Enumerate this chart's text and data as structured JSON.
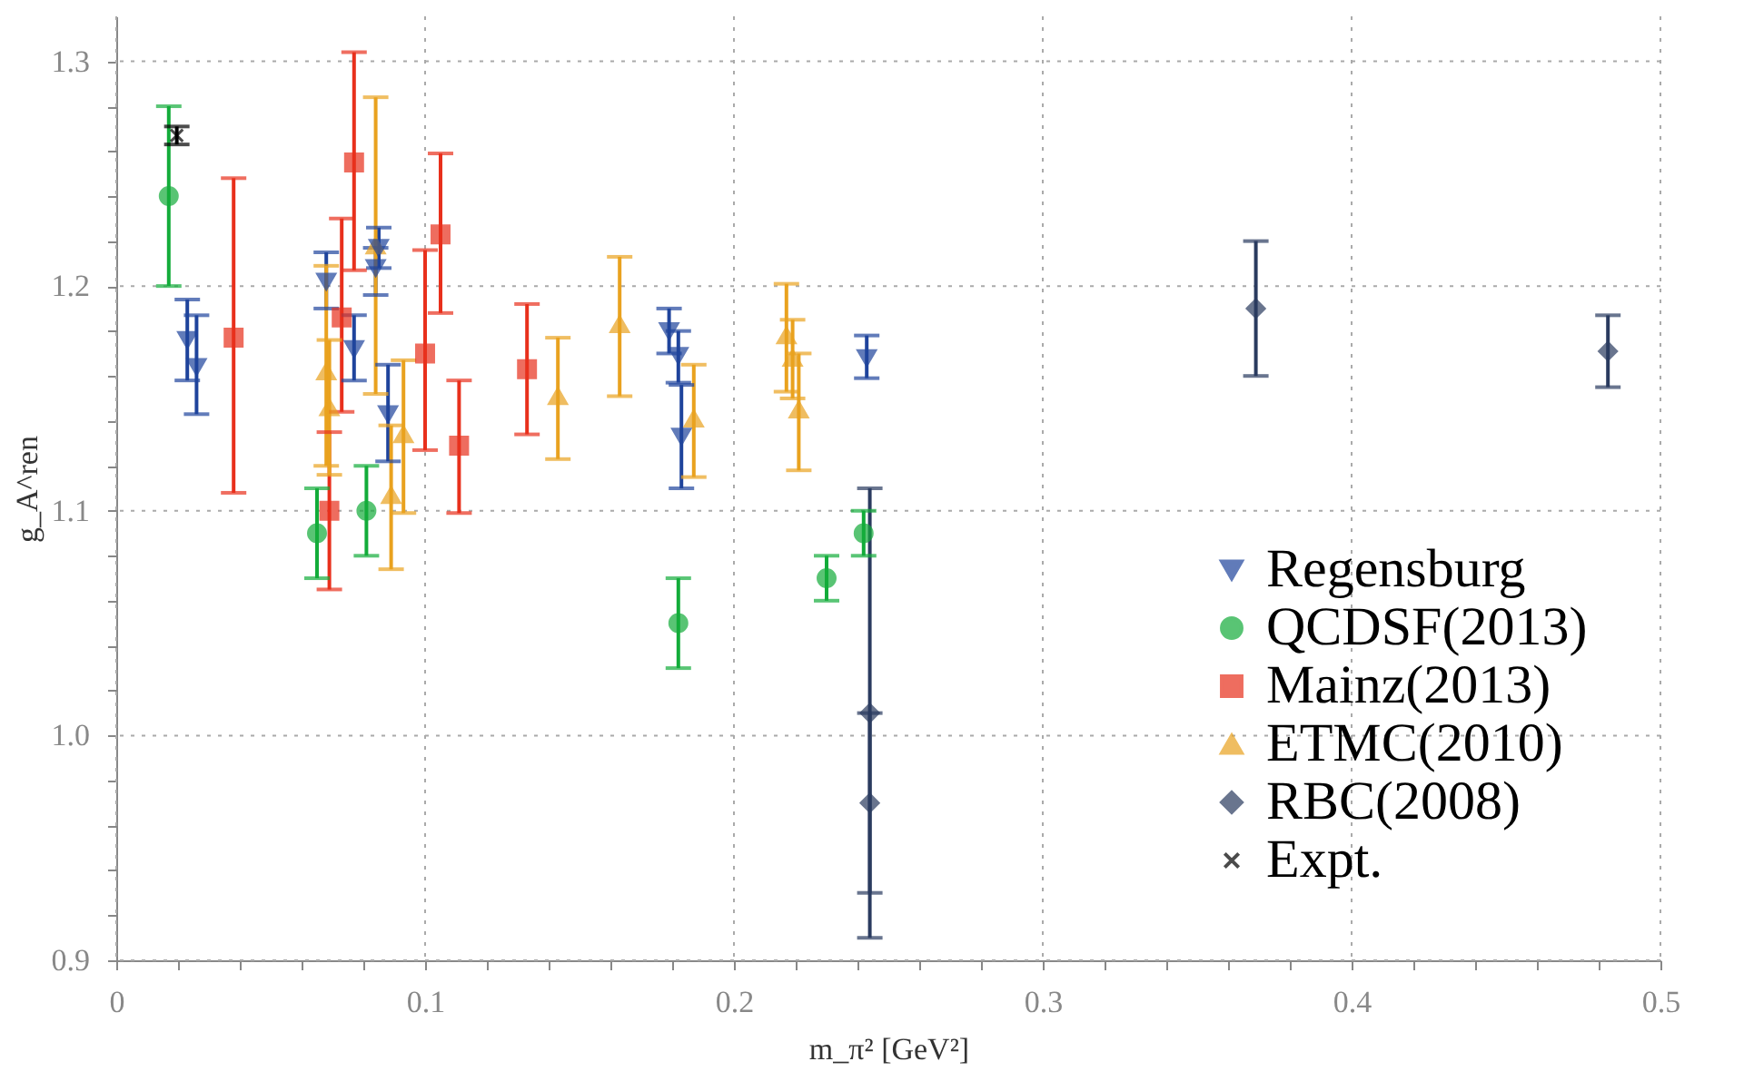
{
  "chart_data": {
    "type": "scatter",
    "xlabel": "m_π² [GeV²]",
    "ylabel": "g_A^ren",
    "xlim": [
      0,
      0.5
    ],
    "ylim": [
      0.9,
      1.32
    ],
    "xticks": [
      0,
      0.1,
      0.2,
      0.3,
      0.4,
      0.5,
      {
        "value": 0.02,
        "label": null
      },
      {
        "value": 0.04,
        "label": null
      },
      {
        "value": 0.06,
        "label": null
      },
      {
        "value": 0.08,
        "label": null
      },
      {
        "value": 0.12,
        "label": null
      },
      {
        "value": 0.14,
        "label": null
      },
      {
        "value": 0.16,
        "label": null
      },
      {
        "value": 0.18,
        "label": null
      },
      {
        "value": 0.22,
        "label": null
      },
      {
        "value": 0.24,
        "label": null
      },
      {
        "value": 0.26,
        "label": null
      },
      {
        "value": 0.28,
        "label": null
      },
      {
        "value": 0.32,
        "label": null
      },
      {
        "value": 0.34,
        "label": null
      },
      {
        "value": 0.36,
        "label": null
      },
      {
        "value": 0.38,
        "label": null
      },
      {
        "value": 0.42,
        "label": null
      },
      {
        "value": 0.44,
        "label": null
      },
      {
        "value": 0.46,
        "label": null
      },
      {
        "value": 0.48,
        "label": null
      }
    ],
    "yticks": [
      0.9,
      {
        "value": 1,
        "label": "1.0"
      },
      1.1,
      1.2,
      1.3,
      {
        "value": 0.92,
        "label": null
      },
      {
        "value": 0.94,
        "label": null
      },
      {
        "value": 0.96,
        "label": null
      },
      {
        "value": 0.98,
        "label": null
      },
      {
        "value": 1.02,
        "label": null
      },
      {
        "value": 1.04,
        "label": null
      },
      {
        "value": 1.06,
        "label": null
      },
      {
        "value": 1.08,
        "label": null
      },
      {
        "value": 1.12,
        "label": null
      },
      {
        "value": 1.14,
        "label": null
      },
      {
        "value": 1.16,
        "label": null
      },
      {
        "value": 1.18,
        "label": null
      },
      {
        "value": 1.22,
        "label": null
      },
      {
        "value": 1.24,
        "label": null
      },
      {
        "value": 1.26,
        "label": null
      },
      {
        "value": 1.28,
        "label": null
      }
    ],
    "grid": true,
    "legend": "bottom right",
    "series": [
      {
        "name": "Regensburg",
        "color": "#1f449c",
        "marker": "triangle-down",
        "x": [
          0.023,
          0.026,
          0.068,
          0.077,
          0.085,
          0.084,
          0.088,
          0.179,
          0.182,
          0.183,
          0.243
        ],
        "values": [
          1.176,
          1.164,
          1.202,
          1.172,
          1.217,
          1.208,
          1.143,
          1.18,
          1.169,
          1.133,
          1.168
        ],
        "errors": [
          [
            1.158,
            1.194
          ],
          [
            1.143,
            1.187
          ],
          [
            1.19,
            1.215
          ],
          [
            1.158,
            1.187
          ],
          [
            1.208,
            1.226
          ],
          [
            1.196,
            1.217
          ],
          [
            1.122,
            1.165
          ],
          [
            1.17,
            1.19
          ],
          [
            1.157,
            1.18
          ],
          [
            1.11,
            1.156
          ],
          [
            1.159,
            1.178
          ]
        ]
      },
      {
        "name": "QCDSF(2013)",
        "color": "#13ac3a",
        "marker": "circle",
        "x": [
          0.017,
          0.065,
          0.081,
          0.182,
          0.23,
          0.242
        ],
        "values": [
          1.24,
          1.09,
          1.1,
          1.05,
          1.07,
          1.09
        ],
        "errors": [
          [
            1.2,
            1.28
          ],
          [
            1.07,
            1.11
          ],
          [
            1.08,
            1.12
          ],
          [
            1.03,
            1.07
          ],
          [
            1.06,
            1.08
          ],
          [
            1.08,
            1.1
          ]
        ]
      },
      {
        "name": "Mainz(2013)",
        "color": "#e8301c",
        "marker": "square",
        "x": [
          0.038,
          0.077,
          0.073,
          0.069,
          0.105,
          0.1,
          0.111,
          0.133
        ],
        "values": [
          1.177,
          1.255,
          1.186,
          1.1,
          1.223,
          1.17,
          1.129,
          1.163
        ],
        "errors": [
          [
            1.108,
            1.248
          ],
          [
            1.207,
            1.304
          ],
          [
            1.144,
            1.23
          ],
          [
            1.065,
            1.135
          ],
          [
            1.188,
            1.259
          ],
          [
            1.127,
            1.216
          ],
          [
            1.099,
            1.158
          ],
          [
            1.134,
            1.192
          ]
        ]
      },
      {
        "name": "ETMC(2010)",
        "color": "#e9a21f",
        "marker": "triangle",
        "x": [
          0.068,
          0.069,
          0.084,
          0.089,
          0.093,
          0.143,
          0.163,
          0.187,
          0.217,
          0.219,
          0.221
        ],
        "values": [
          1.162,
          1.146,
          1.218,
          1.107,
          1.134,
          1.151,
          1.183,
          1.141,
          1.178,
          1.168,
          1.145
        ],
        "errors": [
          [
            1.12,
            1.209
          ],
          [
            1.116,
            1.176
          ],
          [
            1.152,
            1.284
          ],
          [
            1.074,
            1.138
          ],
          [
            1.099,
            1.167
          ],
          [
            1.123,
            1.177
          ],
          [
            1.151,
            1.213
          ],
          [
            1.115,
            1.165
          ],
          [
            1.153,
            1.201
          ],
          [
            1.15,
            1.185
          ],
          [
            1.118,
            1.17
          ]
        ]
      },
      {
        "name": "RBC(2008)",
        "color": "#2a3b5f",
        "marker": "diamond",
        "x": [
          0.244,
          0.244,
          0.369,
          0.483
        ],
        "values": [
          1.01,
          0.97,
          1.19,
          1.171
        ],
        "errors": [
          [
            0.91,
            1.11
          ],
          [
            0.93,
            1.01
          ],
          [
            1.16,
            1.22
          ],
          [
            1.155,
            1.187
          ]
        ]
      },
      {
        "name": "Expt.",
        "color": "#000000",
        "marker": "cross",
        "x": [
          0.0196
        ],
        "values": [
          1.267
        ],
        "errors": [
          [
            1.263,
            1.271
          ]
        ]
      }
    ]
  }
}
